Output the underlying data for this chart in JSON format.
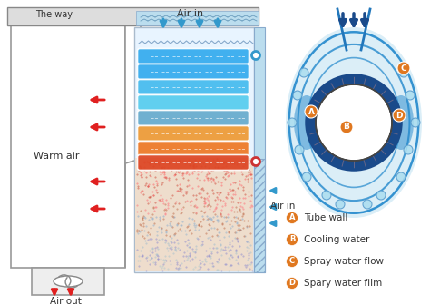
{
  "bg_color": "#ffffff",
  "arrow_red": "#e02020",
  "arrow_blue": "#3399cc",
  "arrow_dark_blue": "#1155aa",
  "coil_colors": [
    "#33aaee",
    "#33aaee",
    "#44bbee",
    "#55ccee",
    "#66aacc",
    "#ee9933",
    "#ee7722",
    "#dd4422",
    "#cc2222"
  ],
  "legend_items": [
    {
      "label": "Tube wall",
      "letter": "A"
    },
    {
      "label": "Cooling water",
      "letter": "B"
    },
    {
      "label": "Spray water flow",
      "letter": "C"
    },
    {
      "label": "Spary water film",
      "letter": "D"
    }
  ],
  "legend_color": "#e07820",
  "text_color": "#333333",
  "dark_blue": "#1a4a8a",
  "mid_blue": "#3399cc",
  "light_blue": "#aaddee",
  "coil_bg": "#ddf0ff"
}
